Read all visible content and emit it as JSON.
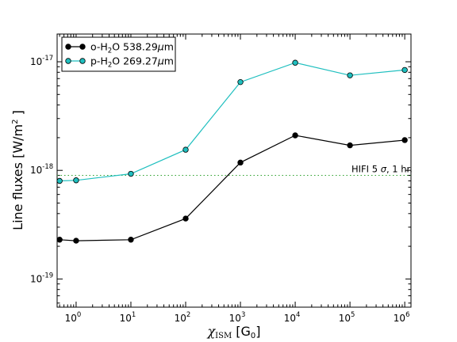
{
  "chart_data": {
    "type": "line",
    "xscale": "log",
    "yscale": "log",
    "xlim": [
      0.45,
      1300000
    ],
    "ylim": [
      5.5e-20,
      1.8e-17
    ],
    "grid": false,
    "legend_position": "top-left",
    "xlabel": {
      "symbol": "χ",
      "subscript": "ISM",
      "unit_open": " [G",
      "unit_sub": "0",
      "unit_close": "]"
    },
    "ylabel": {
      "text": "Line fluxes [W/m",
      "sup": "2",
      "close": " ]"
    },
    "x_ticks": [
      {
        "value": 1,
        "base": "10",
        "exp": "0"
      },
      {
        "value": 10,
        "base": "10",
        "exp": "1"
      },
      {
        "value": 100,
        "base": "10",
        "exp": "2"
      },
      {
        "value": 1000,
        "base": "10",
        "exp": "3"
      },
      {
        "value": 10000,
        "base": "10",
        "exp": "4"
      },
      {
        "value": 100000,
        "base": "10",
        "exp": "5"
      },
      {
        "value": 1000000,
        "base": "10",
        "exp": "6"
      }
    ],
    "y_ticks": [
      {
        "value": 1e-19,
        "base": "10",
        "exp": "-19"
      },
      {
        "value": 1e-18,
        "base": "10",
        "exp": "-18"
      },
      {
        "value": 1e-17,
        "base": "10",
        "exp": "-17"
      }
    ],
    "series": [
      {
        "name": "o-H₂O 538.29μm",
        "legend": {
          "pre": "o-H",
          "sub": "2",
          "post": "O 538.29",
          "mu": "μ",
          "unit": "m"
        },
        "color": "#000000",
        "x": [
          0.5,
          1,
          10,
          100,
          1000,
          10000,
          100000,
          1000000
        ],
        "y": [
          2.3e-19,
          2.25e-19,
          2.3e-19,
          3.6e-19,
          1.18e-18,
          2.1e-18,
          1.7e-18,
          1.9e-18
        ]
      },
      {
        "name": "p-H₂O 269.27μm",
        "legend": {
          "pre": "p-H",
          "sub": "2",
          "post": "O 269.27",
          "mu": "μ",
          "unit": "m"
        },
        "color": "#1fbfbf",
        "x": [
          0.5,
          1,
          10,
          100,
          1000,
          10000,
          100000,
          1000000
        ],
        "y": [
          8e-19,
          8.1e-19,
          9.3e-19,
          1.55e-18,
          6.5e-18,
          9.8e-18,
          7.5e-18,
          8.4e-18
        ]
      }
    ],
    "reference_line": {
      "y": 9e-19,
      "color": "#2ca02c",
      "style": "dotted",
      "label": {
        "pre": "HIFI 5 ",
        "sigma": "σ",
        "post": ", 1 hr."
      }
    }
  }
}
